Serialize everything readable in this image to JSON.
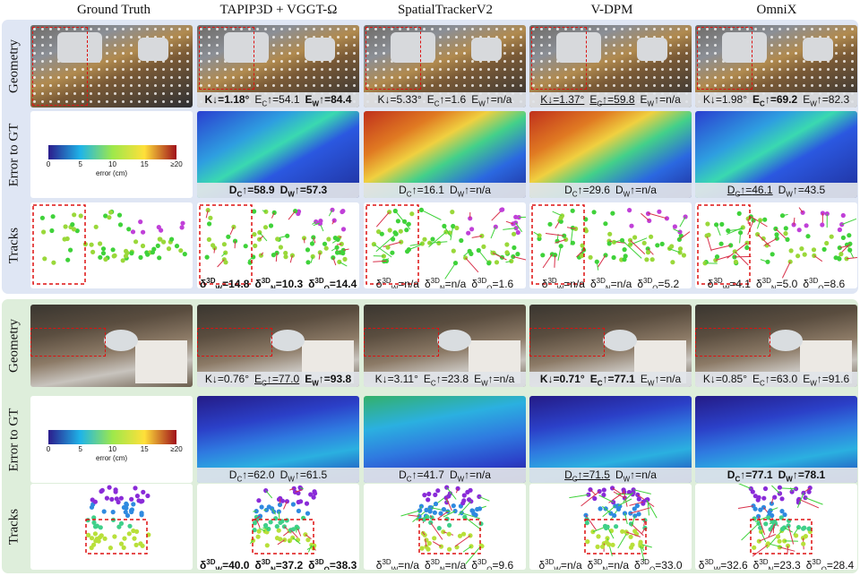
{
  "headers": [
    "Ground Truth",
    "TAPIP3D + VGGT-Ω",
    "SpatialTrackerV2",
    "V-DPM",
    "OmniX"
  ],
  "row_labels": [
    "Geometry",
    "Error to GT",
    "Tracks"
  ],
  "colorbar": {
    "ticks": [
      "0",
      "5",
      "10",
      "15",
      "≥20"
    ],
    "label": "error (cm)",
    "colors": [
      "#2b1c8c",
      "#1fb4e8",
      "#9de84b",
      "#ffe03a",
      "#a0101a"
    ]
  },
  "blocks": [
    {
      "background": "#dfe6f4",
      "geometry": [
        [
          {
            "t": "K↓=",
            "v": "1.18°",
            "s": "bold"
          },
          {
            "t": "E",
            "sub": "C",
            "t2": "↑=",
            "v": "54.1",
            "s": ""
          },
          {
            "t": "E",
            "sub": "W",
            "t2": "↑=",
            "v": "84.4",
            "s": "bold"
          }
        ],
        [
          {
            "t": "K↓=",
            "v": "5.33°",
            "s": ""
          },
          {
            "t": "E",
            "sub": "C",
            "t2": "↑=",
            "v": "1.6",
            "s": ""
          },
          {
            "t": "E",
            "sub": "W",
            "t2": "↑=",
            "v": "n/a",
            "s": ""
          }
        ],
        [
          {
            "t": "K↓=",
            "v": "1.37°",
            "s": "under"
          },
          {
            "t": "E",
            "sub": "C",
            "t2": "↑=",
            "v": "59.8",
            "s": "under"
          },
          {
            "t": "E",
            "sub": "W",
            "t2": "↑=",
            "v": "n/a",
            "s": ""
          }
        ],
        [
          {
            "t": "K↓=",
            "v": "1.98°",
            "s": ""
          },
          {
            "t": "E",
            "sub": "C",
            "t2": "↑=",
            "v": "69.2",
            "s": "bold"
          },
          {
            "t": "E",
            "sub": "W",
            "t2": "↑=",
            "v": "82.3",
            "s": ""
          }
        ]
      ],
      "error": [
        [
          {
            "t": "D",
            "sub": "C",
            "t2": "↑=",
            "v": "58.9",
            "s": "bold"
          },
          {
            "t": "D",
            "sub": "W",
            "t2": "↑=",
            "v": "57.3",
            "s": "bold"
          }
        ],
        [
          {
            "t": "D",
            "sub": "C",
            "t2": "↑=",
            "v": "16.1",
            "s": ""
          },
          {
            "t": "D",
            "sub": "W",
            "t2": "↑=",
            "v": "n/a",
            "s": ""
          }
        ],
        [
          {
            "t": "D",
            "sub": "C",
            "t2": "↑=",
            "v": "29.6",
            "s": ""
          },
          {
            "t": "D",
            "sub": "W",
            "t2": "↑=",
            "v": "n/a",
            "s": ""
          }
        ],
        [
          {
            "t": "D",
            "sub": "C",
            "t2": "↑=",
            "v": "46.1",
            "s": "under"
          },
          {
            "t": "D",
            "sub": "W",
            "t2": "↑=",
            "v": "43.5",
            "s": ""
          }
        ]
      ],
      "tracks": [
        [
          {
            "t": "δ",
            "sup": "3D",
            "sub": "W",
            "t2": "=",
            "v": "14.8",
            "s": "bold"
          },
          {
            "t": "δ",
            "sup": "3D",
            "sub": "N",
            "t2": "=",
            "v": "10.3",
            "s": "bold"
          },
          {
            "t": "δ",
            "sup": "3D",
            "sub": "O",
            "t2": "=",
            "v": "14.4",
            "s": "bold"
          }
        ],
        [
          {
            "t": "δ",
            "sup": "3D",
            "sub": "W",
            "t2": "=",
            "v": "n/a",
            "s": ""
          },
          {
            "t": "δ",
            "sup": "3D",
            "sub": "N",
            "t2": "=",
            "v": "n/a",
            "s": ""
          },
          {
            "t": "δ",
            "sup": "3D",
            "sub": "O",
            "t2": "=",
            "v": "1.6",
            "s": ""
          }
        ],
        [
          {
            "t": "δ",
            "sup": "3D",
            "sub": "W",
            "t2": "=",
            "v": "n/a",
            "s": ""
          },
          {
            "t": "δ",
            "sup": "3D",
            "sub": "N",
            "t2": "=",
            "v": "n/a",
            "s": ""
          },
          {
            "t": "δ",
            "sup": "3D",
            "sub": "O",
            "t2": "=",
            "v": "5.2",
            "s": ""
          }
        ],
        [
          {
            "t": "δ",
            "sup": "3D",
            "sub": "W",
            "t2": "=",
            "v": "4.1",
            "s": ""
          },
          {
            "t": "δ",
            "sup": "3D",
            "sub": "N",
            "t2": "=",
            "v": "5.0",
            "s": ""
          },
          {
            "t": "δ",
            "sup": "3D",
            "sub": "O",
            "t2": "=",
            "v": "8.6",
            "s": "under"
          }
        ]
      ]
    },
    {
      "background": "#deeedb",
      "geometry": [
        [
          {
            "t": "K↓=",
            "v": "0.76°",
            "s": ""
          },
          {
            "t": "E",
            "sub": "C",
            "t2": "↑=",
            "v": "77.0",
            "s": "under"
          },
          {
            "t": "E",
            "sub": "W",
            "t2": "↑=",
            "v": "93.8",
            "s": "bold"
          }
        ],
        [
          {
            "t": "K↓=",
            "v": "3.11°",
            "s": ""
          },
          {
            "t": "E",
            "sub": "C",
            "t2": "↑=",
            "v": "23.8",
            "s": ""
          },
          {
            "t": "E",
            "sub": "W",
            "t2": "↑=",
            "v": "n/a",
            "s": ""
          }
        ],
        [
          {
            "t": "K↓=",
            "v": "0.71°",
            "s": "bold"
          },
          {
            "t": "E",
            "sub": "C",
            "t2": "↑=",
            "v": "77.1",
            "s": "bold"
          },
          {
            "t": "E",
            "sub": "W",
            "t2": "↑=",
            "v": "n/a",
            "s": ""
          }
        ],
        [
          {
            "t": "K↓=",
            "v": "0.85°",
            "s": ""
          },
          {
            "t": "E",
            "sub": "C",
            "t2": "↑=",
            "v": "63.0",
            "s": ""
          },
          {
            "t": "E",
            "sub": "W",
            "t2": "↑=",
            "v": "91.6",
            "s": ""
          }
        ]
      ],
      "error": [
        [
          {
            "t": "D",
            "sub": "C",
            "t2": "↑=",
            "v": "62.0",
            "s": ""
          },
          {
            "t": "D",
            "sub": "W",
            "t2": "↑=",
            "v": "61.5",
            "s": ""
          }
        ],
        [
          {
            "t": "D",
            "sub": "C",
            "t2": "↑=",
            "v": "41.7",
            "s": ""
          },
          {
            "t": "D",
            "sub": "W",
            "t2": "↑=",
            "v": "n/a",
            "s": ""
          }
        ],
        [
          {
            "t": "D",
            "sub": "C",
            "t2": "↑=",
            "v": "71.5",
            "s": "under"
          },
          {
            "t": "D",
            "sub": "W",
            "t2": "↑=",
            "v": "n/a",
            "s": ""
          }
        ],
        [
          {
            "t": "D",
            "sub": "C",
            "t2": "↑=",
            "v": "77.1",
            "s": "bold"
          },
          {
            "t": "D",
            "sub": "W",
            "t2": "↑=",
            "v": "78.1",
            "s": "bold"
          }
        ]
      ],
      "tracks": [
        [
          {
            "t": "δ",
            "sup": "3D",
            "sub": "W",
            "t2": "=",
            "v": "40.0",
            "s": "bold"
          },
          {
            "t": "δ",
            "sup": "3D",
            "sub": "N",
            "t2": "=",
            "v": "37.2",
            "s": "bold"
          },
          {
            "t": "δ",
            "sup": "3D",
            "sub": "O",
            "t2": "=",
            "v": "38.3",
            "s": "bold"
          }
        ],
        [
          {
            "t": "δ",
            "sup": "3D",
            "sub": "W",
            "t2": "=",
            "v": "n/a",
            "s": ""
          },
          {
            "t": "δ",
            "sup": "3D",
            "sub": "N",
            "t2": "=",
            "v": "n/a",
            "s": ""
          },
          {
            "t": "δ",
            "sup": "3D",
            "sub": "O",
            "t2": "=",
            "v": "9.6",
            "s": ""
          }
        ],
        [
          {
            "t": "δ",
            "sup": "3D",
            "sub": "W",
            "t2": "=",
            "v": "n/a",
            "s": ""
          },
          {
            "t": "δ",
            "sup": "3D",
            "sub": "N",
            "t2": "=",
            "v": "n/a",
            "s": ""
          },
          {
            "t": "δ",
            "sup": "3D",
            "sub": "O",
            "t2": "=",
            "v": "33.0",
            "s": "under"
          }
        ],
        [
          {
            "t": "δ",
            "sup": "3D",
            "sub": "W",
            "t2": "=",
            "v": "32.6",
            "s": ""
          },
          {
            "t": "δ",
            "sup": "3D",
            "sub": "N",
            "t2": "=",
            "v": "23.3",
            "s": ""
          },
          {
            "t": "δ",
            "sup": "3D",
            "sub": "O",
            "t2": "=",
            "v": "28.4",
            "s": ""
          }
        ]
      ]
    }
  ]
}
